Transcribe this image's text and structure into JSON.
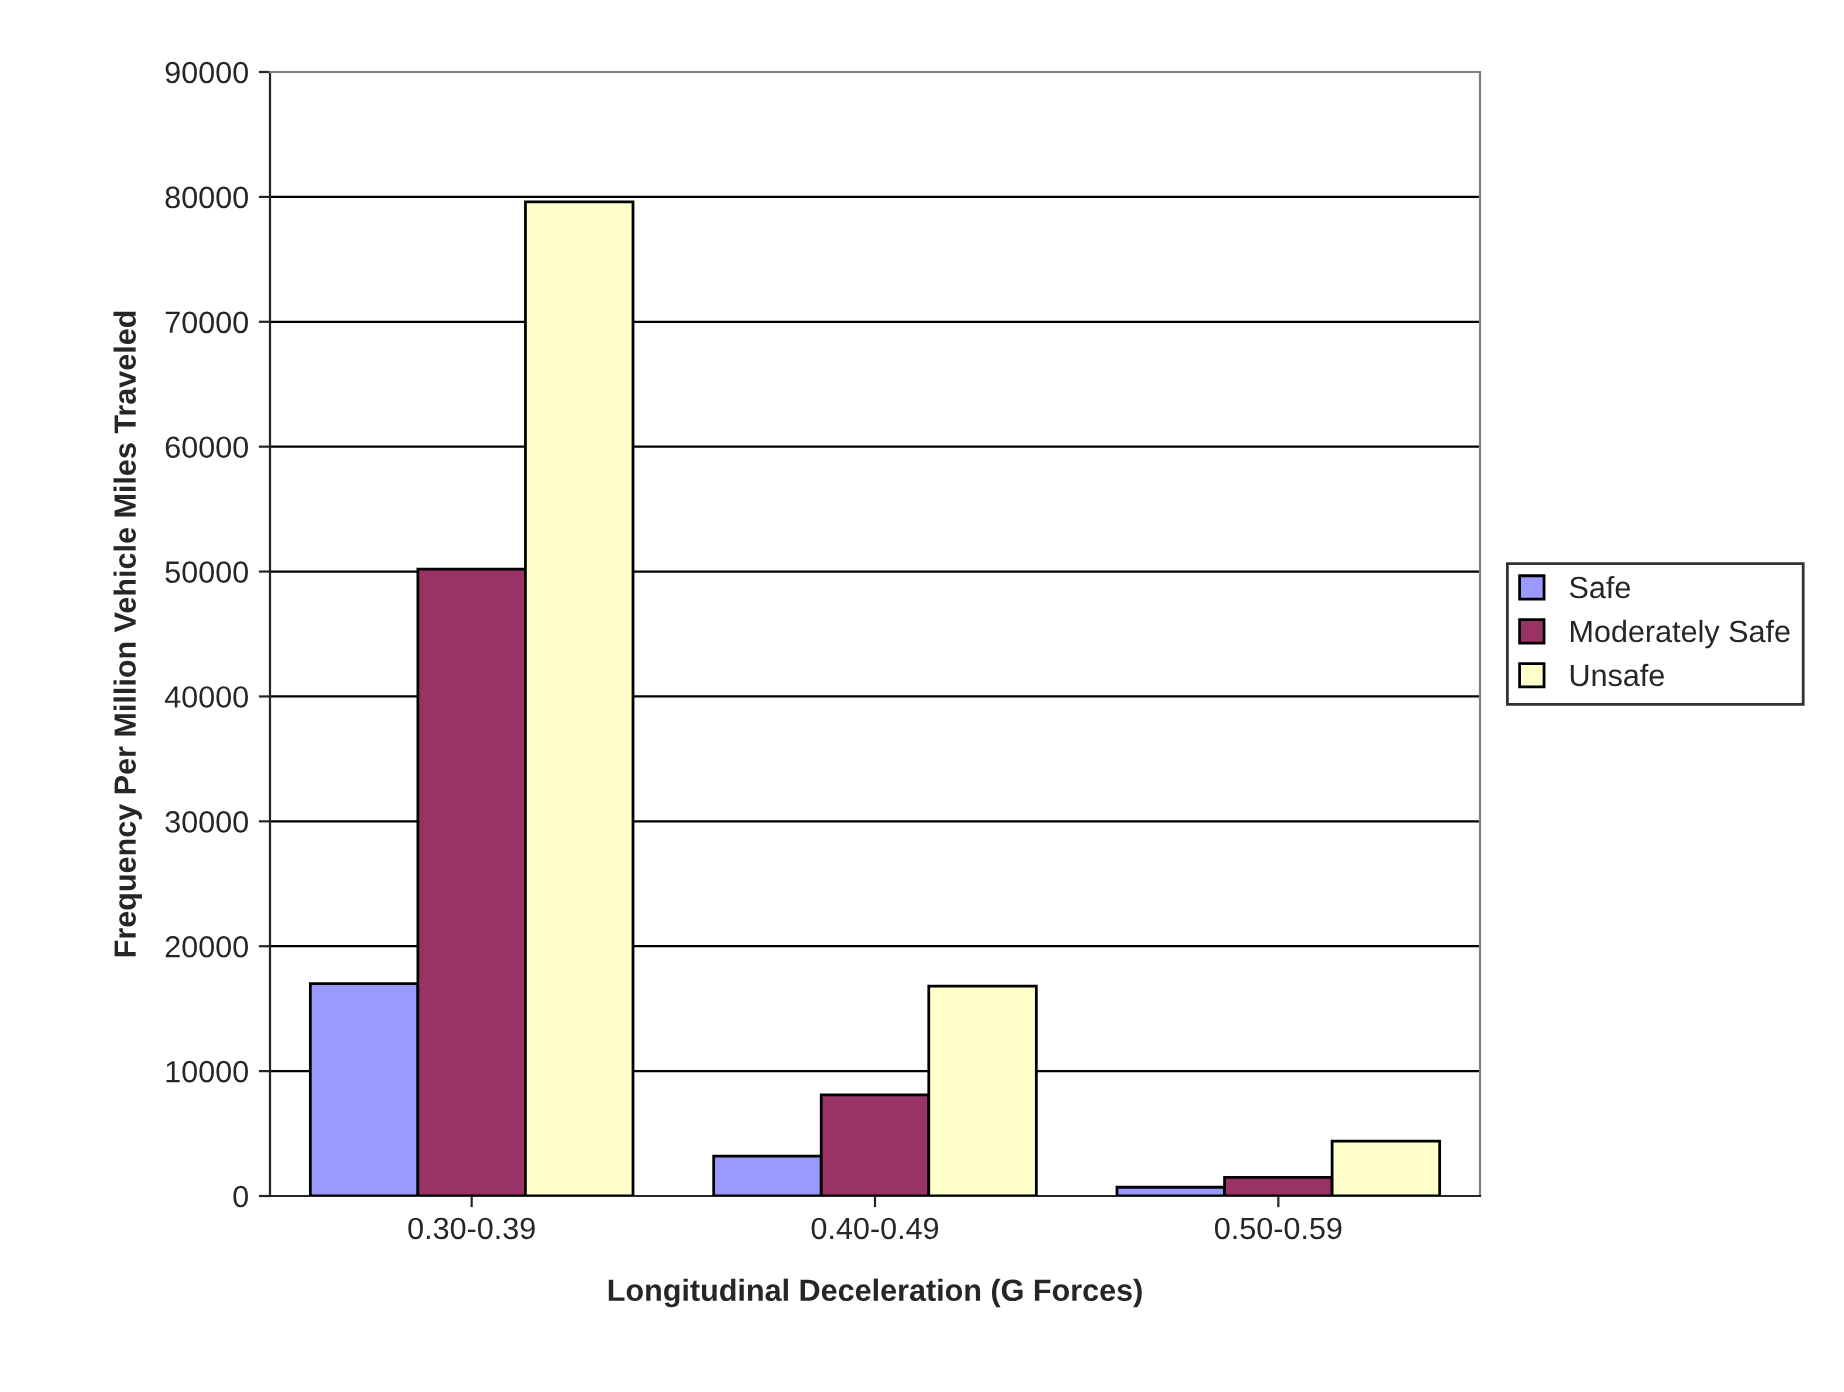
{
  "chart_data": {
    "type": "bar",
    "xlabel": "Longitudinal Deceleration (G Forces)",
    "ylabel": "Frequency Per Million Vehicle Miles Traveled",
    "categories": [
      "0.30-0.39",
      "0.40-0.49",
      "0.50-0.59"
    ],
    "series": [
      {
        "name": "Safe",
        "color": "#9999ff",
        "values": [
          17000,
          3200,
          700
        ]
      },
      {
        "name": "Moderately Safe",
        "color": "#993366",
        "values": [
          50200,
          8100,
          1500
        ]
      },
      {
        "name": "Unsafe",
        "color": "#ffffcc",
        "values": [
          79600,
          16800,
          4400
        ]
      }
    ],
    "ylim": [
      0,
      90000
    ],
    "yticks": [
      0,
      10000,
      20000,
      30000,
      40000,
      50000,
      60000,
      70000,
      80000,
      90000
    ],
    "grid": "y",
    "legend": "right"
  }
}
